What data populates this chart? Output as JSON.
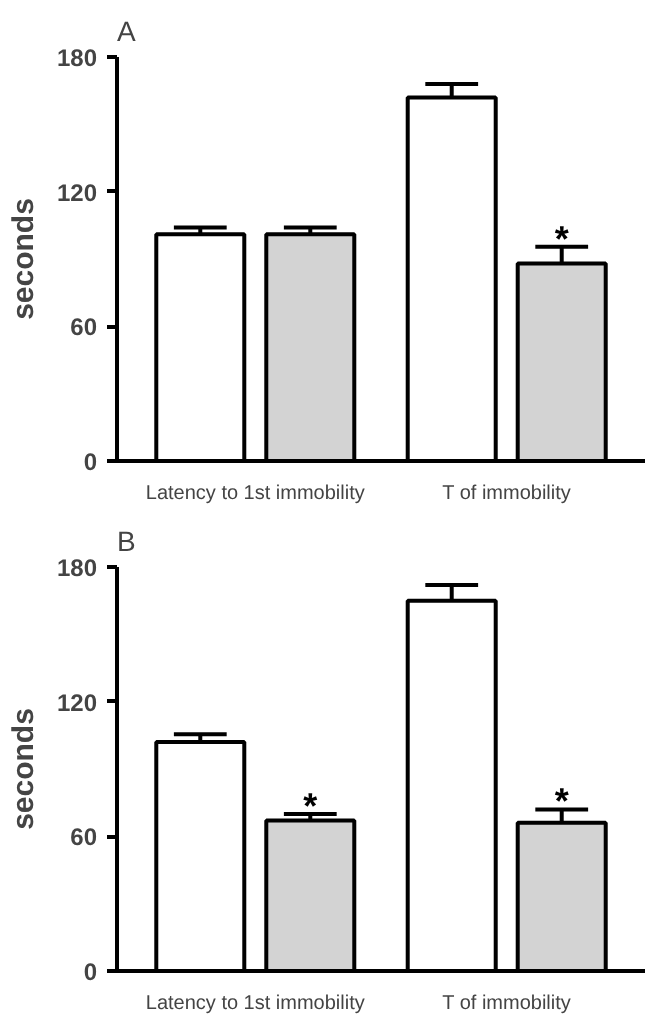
{
  "chart_data": [
    {
      "type": "bar",
      "title": "A",
      "ylabel": "seconds",
      "categories": [
        "Latency to 1st immobility",
        "T of immobility"
      ],
      "ylim": [
        0,
        180
      ],
      "yticks": [
        0,
        60,
        120,
        180
      ],
      "grid": false,
      "series": [
        {
          "color": "#ffffff",
          "values": [
            101,
            162
          ],
          "errors": [
            3,
            6
          ]
        },
        {
          "color": "#d3d3d3",
          "values": [
            101,
            88
          ],
          "errors": [
            3,
            7.5
          ],
          "value_labels": [
            null,
            "*"
          ]
        }
      ]
    },
    {
      "type": "bar",
      "title": "B",
      "ylabel": "seconds",
      "categories": [
        "Latency to 1st immobility",
        "T of immobility"
      ],
      "ylim": [
        0,
        180
      ],
      "yticks": [
        0,
        60,
        120,
        180
      ],
      "grid": false,
      "series": [
        {
          "color": "#ffffff",
          "values": [
            102,
            165
          ],
          "errors": [
            3.5,
            7
          ]
        },
        {
          "color": "#d3d3d3",
          "values": [
            67,
            66
          ],
          "errors": [
            3,
            6
          ],
          "value_labels": [
            "*",
            "*"
          ]
        }
      ]
    }
  ]
}
